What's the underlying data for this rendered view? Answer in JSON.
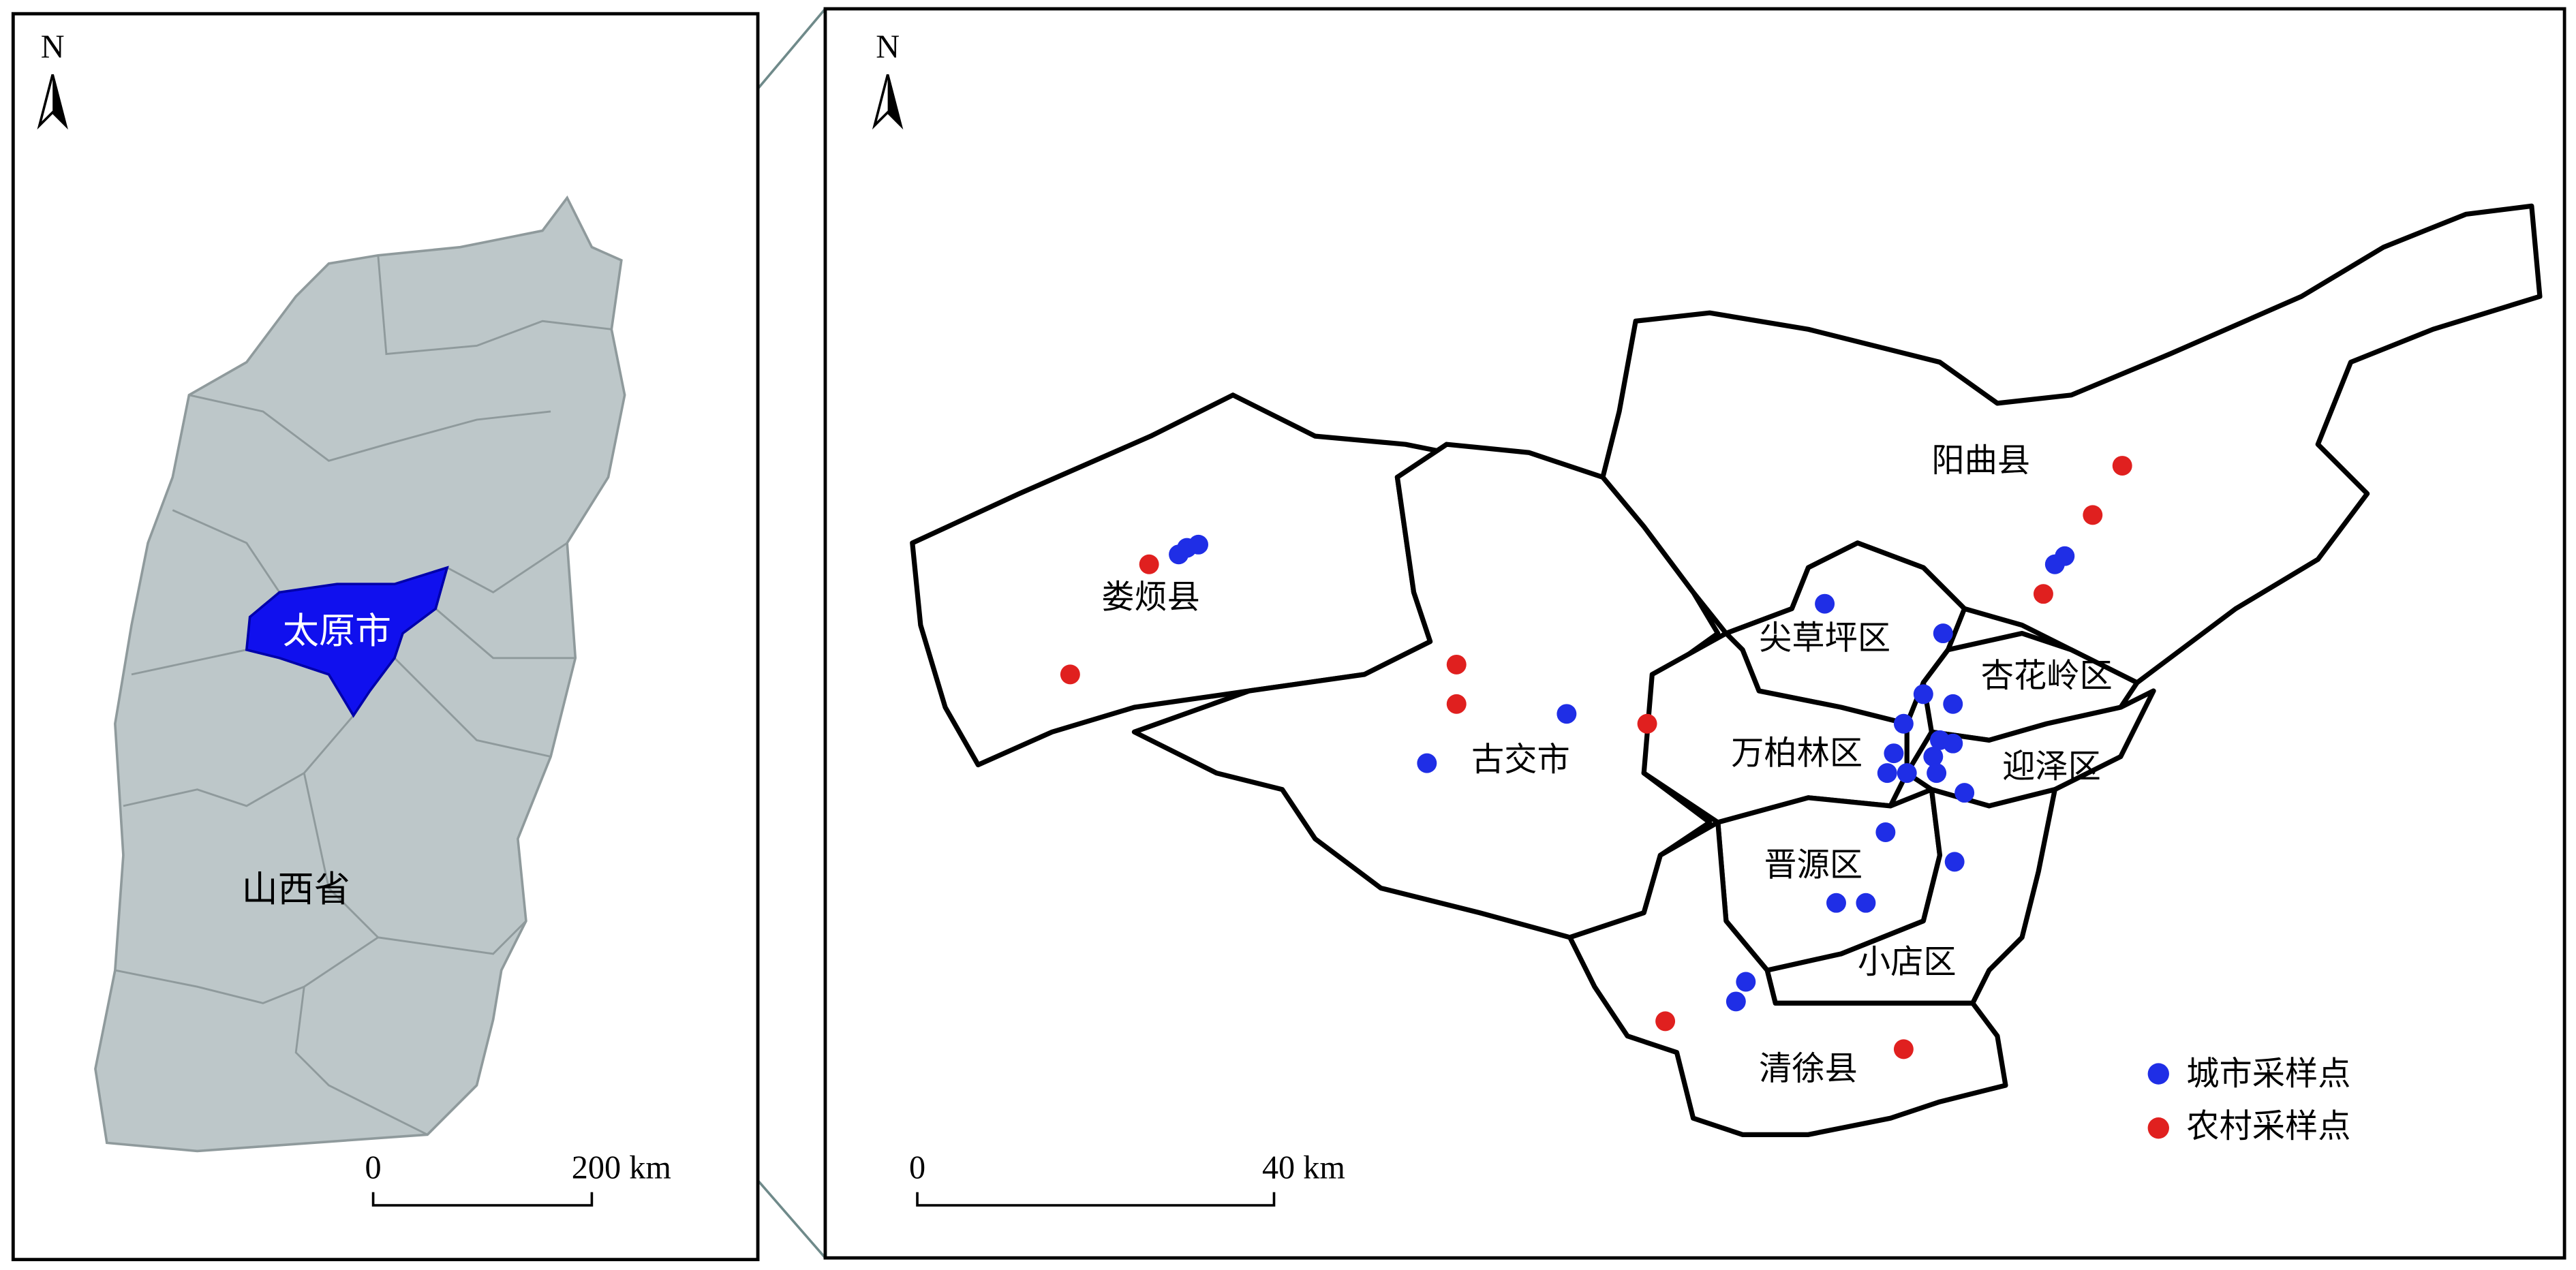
{
  "overview_map": {
    "north": "N",
    "city_label": "太原市",
    "province_label": "山西省",
    "scale_bar": {
      "start": "0",
      "end": "200 km"
    }
  },
  "detail_map": {
    "north": "N",
    "district_labels": [
      "阳曲县",
      "娄烦县",
      "尖草坪区",
      "杏花岭区",
      "古交市",
      "万柏林区",
      "迎泽区",
      "晋源区",
      "小店区",
      "清徐县"
    ],
    "scale_bar": {
      "start": "0",
      "end": "40 km"
    },
    "legend": [
      {
        "label": "城市采样点",
        "color": "#1f2ee6"
      },
      {
        "label": "农村采样点",
        "color": "#e0201f"
      }
    ]
  }
}
